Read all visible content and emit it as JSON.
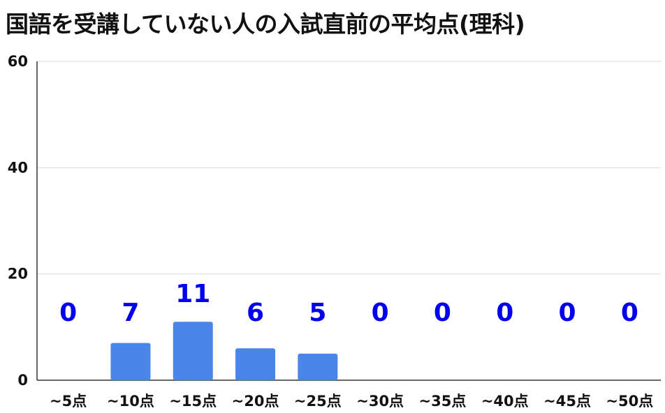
{
  "chart_data": {
    "type": "bar",
    "title": "国語を受講していない人の入試直前の平均点(理科)",
    "xlabel": "",
    "ylabel": "",
    "categories": [
      "~5点",
      "~10点",
      "~15点",
      "~20点",
      "~25点",
      "~30点",
      "~35点",
      "~40点",
      "~45点",
      "~50点"
    ],
    "values": [
      0,
      7,
      11,
      6,
      5,
      0,
      0,
      0,
      0,
      0
    ],
    "data_labels": [
      "0",
      "7",
      "11",
      "6",
      "5",
      "0",
      "0",
      "0",
      "0",
      "0"
    ],
    "ylim": [
      0,
      60
    ],
    "yticks": [
      0,
      20,
      40,
      60
    ],
    "grid": true,
    "legend": "none",
    "colors": {
      "bar": "#4a86e8",
      "data_label": "#0000ee",
      "grid": "#d9d9d9",
      "axis": "#333333",
      "text": "#111111"
    }
  }
}
